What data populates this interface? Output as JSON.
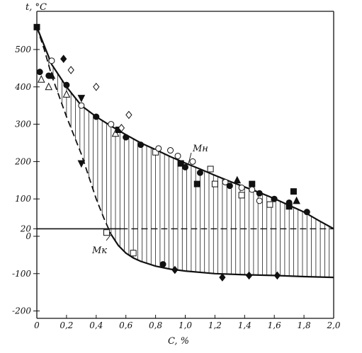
{
  "chart_data": {
    "type": "line",
    "xlabel": "C, %",
    "ylabel": "t, °C",
    "xlim": [
      0,
      2.0
    ],
    "ylim": [
      -200,
      600
    ],
    "xticks": [
      "0",
      "0,2",
      "0,4",
      "0,6",
      "0,8",
      "1,0",
      "1,2",
      "1,4",
      "1,6",
      "1,8",
      "2,0"
    ],
    "yticks": [
      "500",
      "400",
      "300",
      "200",
      "100",
      "20",
      "0",
      "-100",
      "-200"
    ],
    "grid": false,
    "shaded_band": "vertical hatching between Mн and Mк curves",
    "reference_line": {
      "y": 20,
      "label": "20"
    },
    "series": [
      {
        "name": "Mн",
        "style": "solid",
        "x": [
          0,
          0.05,
          0.1,
          0.2,
          0.3,
          0.4,
          0.5,
          0.6,
          0.7,
          0.8,
          0.9,
          1.0,
          1.1,
          1.2,
          1.3,
          1.4,
          1.5,
          1.6,
          1.7,
          1.8,
          1.9,
          2.0
        ],
        "y": [
          560,
          510,
          460,
          400,
          350,
          320,
          295,
          272,
          250,
          232,
          213,
          196,
          180,
          163,
          147,
          132,
          117,
          101,
          83,
          65,
          42,
          20
        ]
      },
      {
        "name": "Mк",
        "style": "dashed-then-solid",
        "x": [
          0,
          0.05,
          0.1,
          0.2,
          0.3,
          0.35,
          0.4,
          0.45,
          0.5,
          0.55,
          0.6,
          0.65,
          0.7,
          0.8,
          0.9,
          1.0,
          1.2,
          1.4,
          1.6,
          1.8,
          2.0
        ],
        "y": [
          560,
          500,
          430,
          320,
          220,
          160,
          100,
          50,
          5,
          -25,
          -45,
          -58,
          -67,
          -80,
          -88,
          -93,
          -100,
          -103,
          -105,
          -108,
          -110
        ]
      }
    ],
    "markers": [
      {
        "x": 0,
        "y": 560,
        "shape": "square",
        "filled": true
      },
      {
        "x": 0.02,
        "y": 440,
        "shape": "circle",
        "filled": true
      },
      {
        "x": 0.03,
        "y": 420,
        "shape": "triangle",
        "filled": false
      },
      {
        "x": 0.08,
        "y": 430,
        "shape": "circle",
        "filled": true
      },
      {
        "x": 0.08,
        "y": 400,
        "shape": "triangle",
        "filled": false
      },
      {
        "x": 0.1,
        "y": 470,
        "shape": "circle",
        "filled": false
      },
      {
        "x": 0.1,
        "y": 430,
        "shape": "triangle",
        "filled": true
      },
      {
        "x": 0.18,
        "y": 475,
        "shape": "diamond",
        "filled": true
      },
      {
        "x": 0.2,
        "y": 405,
        "shape": "circle",
        "filled": true
      },
      {
        "x": 0.2,
        "y": 380,
        "shape": "triangle",
        "filled": false
      },
      {
        "x": 0.23,
        "y": 445,
        "shape": "diamond",
        "filled": false
      },
      {
        "x": 0.3,
        "y": 370,
        "shape": "triangle-down",
        "filled": true
      },
      {
        "x": 0.3,
        "y": 350,
        "shape": "circle",
        "filled": false
      },
      {
        "x": 0.3,
        "y": 195,
        "shape": "triangle-down",
        "filled": true
      },
      {
        "x": 0.4,
        "y": 400,
        "shape": "diamond",
        "filled": false
      },
      {
        "x": 0.4,
        "y": 320,
        "shape": "circle",
        "filled": true
      },
      {
        "x": 0.47,
        "y": 10,
        "shape": "square",
        "filled": false
      },
      {
        "x": 0.5,
        "y": 300,
        "shape": "circle",
        "filled": false
      },
      {
        "x": 0.53,
        "y": 275,
        "shape": "triangle",
        "filled": false
      },
      {
        "x": 0.55,
        "y": 285,
        "shape": "square",
        "filled": true
      },
      {
        "x": 0.57,
        "y": 290,
        "shape": "diamond",
        "filled": false
      },
      {
        "x": 0.6,
        "y": 265,
        "shape": "circle",
        "filled": true
      },
      {
        "x": 0.62,
        "y": 325,
        "shape": "diamond",
        "filled": false
      },
      {
        "x": 0.65,
        "y": -45,
        "shape": "square",
        "filled": false
      },
      {
        "x": 0.7,
        "y": 245,
        "shape": "circle",
        "filled": true
      },
      {
        "x": 0.8,
        "y": 225,
        "shape": "square",
        "filled": false
      },
      {
        "x": 0.82,
        "y": 235,
        "shape": "circle",
        "filled": false
      },
      {
        "x": 0.85,
        "y": -75,
        "shape": "circle",
        "filled": true
      },
      {
        "x": 0.9,
        "y": 230,
        "shape": "circle",
        "filled": false
      },
      {
        "x": 0.93,
        "y": -90,
        "shape": "diamond",
        "filled": true
      },
      {
        "x": 0.95,
        "y": 215,
        "shape": "circle",
        "filled": false
      },
      {
        "x": 0.97,
        "y": 195,
        "shape": "square",
        "filled": true
      },
      {
        "x": 1.0,
        "y": 185,
        "shape": "circle",
        "filled": true
      },
      {
        "x": 1.05,
        "y": 200,
        "shape": "circle",
        "filled": false
      },
      {
        "x": 1.08,
        "y": 140,
        "shape": "square",
        "filled": true
      },
      {
        "x": 1.1,
        "y": 170,
        "shape": "circle",
        "filled": true
      },
      {
        "x": 1.17,
        "y": 180,
        "shape": "square",
        "filled": false
      },
      {
        "x": 1.2,
        "y": 140,
        "shape": "square",
        "filled": false
      },
      {
        "x": 1.25,
        "y": -110,
        "shape": "diamond",
        "filled": true
      },
      {
        "x": 1.27,
        "y": 145,
        "shape": "circle",
        "filled": false
      },
      {
        "x": 1.3,
        "y": 135,
        "shape": "circle",
        "filled": true
      },
      {
        "x": 1.35,
        "y": 150,
        "shape": "triangle",
        "filled": true
      },
      {
        "x": 1.38,
        "y": 110,
        "shape": "square",
        "filled": false
      },
      {
        "x": 1.38,
        "y": 130,
        "shape": "circle",
        "filled": false
      },
      {
        "x": 1.43,
        "y": -105,
        "shape": "diamond",
        "filled": true
      },
      {
        "x": 1.45,
        "y": 140,
        "shape": "square",
        "filled": true
      },
      {
        "x": 1.45,
        "y": 125,
        "shape": "circle",
        "filled": false
      },
      {
        "x": 1.5,
        "y": 115,
        "shape": "circle",
        "filled": true
      },
      {
        "x": 1.5,
        "y": 95,
        "shape": "circle",
        "filled": false
      },
      {
        "x": 1.57,
        "y": 85,
        "shape": "square",
        "filled": false
      },
      {
        "x": 1.6,
        "y": 100,
        "shape": "circle",
        "filled": true
      },
      {
        "x": 1.62,
        "y": -105,
        "shape": "diamond",
        "filled": true
      },
      {
        "x": 1.7,
        "y": 80,
        "shape": "square",
        "filled": true
      },
      {
        "x": 1.7,
        "y": 90,
        "shape": "circle",
        "filled": true
      },
      {
        "x": 1.73,
        "y": 120,
        "shape": "square",
        "filled": true
      },
      {
        "x": 1.75,
        "y": 95,
        "shape": "triangle",
        "filled": true
      },
      {
        "x": 1.82,
        "y": 65,
        "shape": "circle",
        "filled": true
      }
    ],
    "annotations": [
      {
        "text": "Mн",
        "series": "Mн",
        "at_x": 1.02,
        "at_y": 192
      },
      {
        "text": "Mк",
        "series": "Mк",
        "at_x": 0.5,
        "at_y": 5
      }
    ]
  }
}
